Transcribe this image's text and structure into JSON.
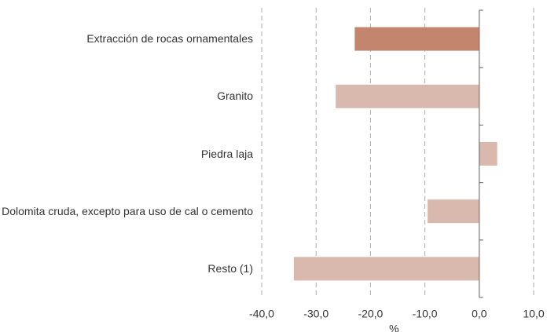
{
  "chart_data": {
    "type": "barh",
    "categories": [
      "Extracción de rocas ornamentales",
      "Granito",
      "Piedra laja",
      "Dolomita cruda, excepto para uso de cal o cemento",
      "Resto (1)"
    ],
    "values": [
      -22.9,
      -26.4,
      3.3,
      -9.5,
      -34.1
    ],
    "colors": [
      "#c4856f",
      "#d9b9ae",
      "#d9b9ae",
      "#d9b9ae",
      "#d9b9ae"
    ],
    "xlabel": "%",
    "xlim": [
      -40,
      10
    ],
    "xticks": [
      {
        "value": -40,
        "label": "-40,0"
      },
      {
        "value": -30,
        "label": "-30,0"
      },
      {
        "value": -20,
        "label": "-20,0"
      },
      {
        "value": -10,
        "label": "-10,0"
      },
      {
        "value": 0,
        "label": "0,0"
      },
      {
        "value": 10,
        "label": "10,0"
      }
    ],
    "grid": true
  }
}
